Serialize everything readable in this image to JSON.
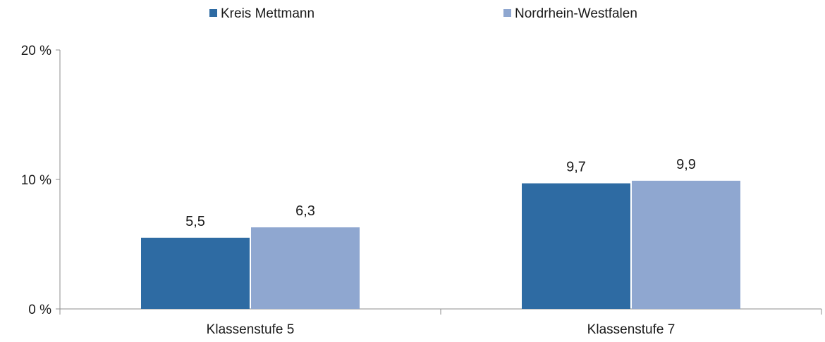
{
  "chart_data": {
    "type": "bar",
    "categories": [
      "Klassenstufe 5",
      "Klassenstufe 7"
    ],
    "series": [
      {
        "name": "Kreis Mettmann",
        "values": [
          5.5,
          9.7
        ],
        "labels": [
          "5,5",
          "9,7"
        ],
        "color": "#2e6ba3"
      },
      {
        "name": "Nordrhein-Westfalen",
        "values": [
          6.3,
          9.9
        ],
        "labels": [
          "6,3",
          "9,9"
        ],
        "color": "#8fa7d0"
      }
    ],
    "ylim": [
      0,
      20
    ],
    "yticks": [
      0,
      10,
      20
    ],
    "ytick_labels": [
      "0 %",
      "10 %",
      "20 %"
    ],
    "grid": false,
    "legend_position": "top-center",
    "xlabel": "",
    "ylabel": ""
  }
}
